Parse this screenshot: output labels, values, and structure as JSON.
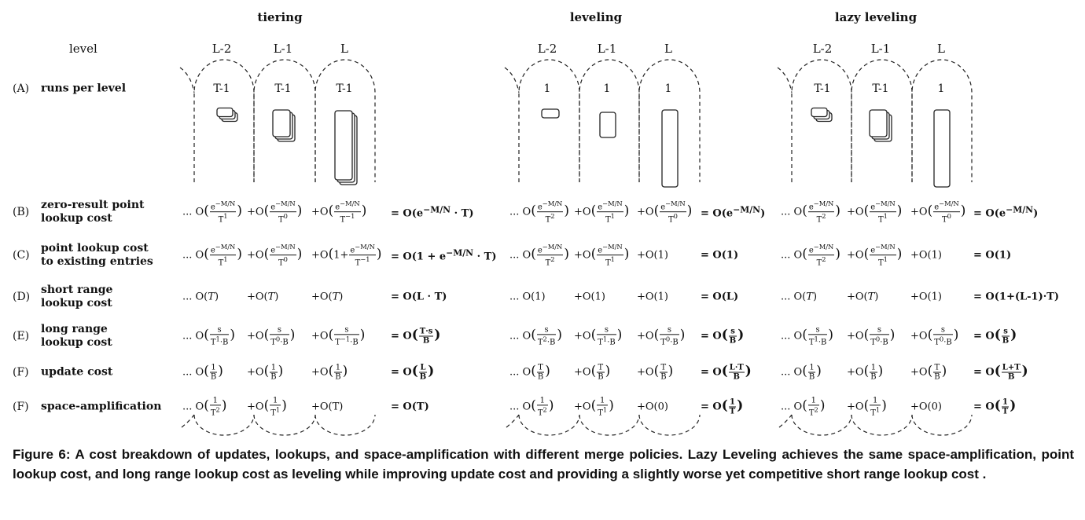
{
  "policies": [
    {
      "name": "tiering",
      "levels": [
        "L-2",
        "L-1",
        "L"
      ],
      "runs": [
        "T-1",
        "T-1",
        "T-1"
      ],
      "B": [
        [
          "... O",
          "e<sup>−M/N</sup>",
          "T<sup>1</sup>"
        ],
        [
          "+O",
          "e<sup>−M/N</sup>",
          "T<sup>0</sup>"
        ],
        [
          "+O",
          "e<sup>−M/N</sup>",
          "T<sup>−1</sup>"
        ]
      ],
      "B_res": "= O(e<sup>−M/N</sup> · T)",
      "C": [
        [
          "... O",
          "e<sup>−M/N</sup>",
          "T<sup>1</sup>"
        ],
        [
          "+O",
          "e<sup>−M/N</sup>",
          "T<sup>0</sup>"
        ],
        [
          "+O",
          "1+",
          "e<sup>−M/N</sup>",
          "T<sup>−1</sup>"
        ]
      ],
      "C_res": "= O(1 + e<sup>−M/N</sup> · T)",
      "D": [
        "... O(T)",
        "+O(T)",
        "+O(T)"
      ],
      "D_res": "= O(L · T)",
      "E": [
        [
          "... O",
          "s",
          "T<sup>1</sup>·B"
        ],
        [
          "+O",
          "s",
          "T<sup>0</sup>·B"
        ],
        [
          "+O",
          "s",
          "T<sup>−1</sup>·B"
        ]
      ],
      "E_res": [
        "= O",
        "T·s",
        "B"
      ],
      "F": [
        [
          "... O",
          "1",
          "B"
        ],
        [
          "+O",
          "1",
          "B"
        ],
        [
          "+O",
          "1",
          "B"
        ]
      ],
      "F_res": [
        "= O",
        "L",
        "B"
      ],
      "G": [
        [
          "... O",
          "1",
          "T<sup>2</sup>"
        ],
        [
          "+O",
          "1",
          "T<sup>1</sup>"
        ],
        [
          "+O(T)"
        ]
      ],
      "G_res": "= O(T)"
    },
    {
      "name": "leveling",
      "levels": [
        "L-2",
        "L-1",
        "L"
      ],
      "runs": [
        "1",
        "1",
        "1"
      ],
      "B": [
        [
          "... O",
          "e<sup>−M/N</sup>",
          "T<sup>2</sup>"
        ],
        [
          "+O",
          "e<sup>−M/N</sup>",
          "T<sup>1</sup>"
        ],
        [
          "+O",
          "e<sup>−M/N</sup>",
          "T<sup>0</sup>"
        ]
      ],
      "B_res": "= O(e<sup>−M/N</sup>)",
      "C": [
        [
          "... O",
          "e<sup>−M/N</sup>",
          "T<sup>2</sup>"
        ],
        [
          "+O",
          "e<sup>−M/N</sup>",
          "T<sup>1</sup>"
        ],
        [
          "+O(1)"
        ]
      ],
      "C_res": "= O(1)",
      "D": [
        "... O(1)",
        "+O(1)",
        "+O(1)"
      ],
      "D_res": "= O(L)",
      "E": [
        [
          "... O",
          "s",
          "T<sup>2</sup>·B"
        ],
        [
          "+O",
          "s",
          "T<sup>1</sup>·B"
        ],
        [
          "+O",
          "s",
          "T<sup>0</sup>·B"
        ]
      ],
      "E_res": [
        "= O",
        "s",
        "B"
      ],
      "F": [
        [
          "... O",
          "T",
          "B"
        ],
        [
          "+O",
          "T",
          "B"
        ],
        [
          "+O",
          "T",
          "B"
        ]
      ],
      "F_res": [
        "= O",
        "L·T",
        "B"
      ],
      "G": [
        [
          "... O",
          "1",
          "T<sup>2</sup>"
        ],
        [
          "+O",
          "1",
          "T<sup>1</sup>"
        ],
        [
          "+O(0)"
        ]
      ],
      "G_res": [
        "= O",
        "1",
        "T"
      ]
    },
    {
      "name": "lazy leveling",
      "levels": [
        "L-2",
        "L-1",
        "L"
      ],
      "runs": [
        "T-1",
        "T-1",
        "1"
      ],
      "B": [
        [
          "... O",
          "e<sup>−M/N</sup>",
          "T<sup>2</sup>"
        ],
        [
          "+O",
          "e<sup>−M/N</sup>",
          "T<sup>1</sup>"
        ],
        [
          "+O",
          "e<sup>−M/N</sup>",
          "T<sup>0</sup>"
        ]
      ],
      "B_res": "= O(e<sup>−M/N</sup>)",
      "C": [
        [
          "... O",
          "e<sup>−M/N</sup>",
          "T<sup>2</sup>"
        ],
        [
          "+O",
          "e<sup>−M/N</sup>",
          "T<sup>1</sup>"
        ],
        [
          "+O(1)"
        ]
      ],
      "C_res": "= O(1)",
      "D": [
        "... O(T)",
        "+O(T)",
        "+O(1)"
      ],
      "D_res": "= O(1+(L-1)·T)",
      "E": [
        [
          "... O",
          "s",
          "T<sup>1</sup>·B"
        ],
        [
          "+O",
          "s",
          "T<sup>0</sup>·B"
        ],
        [
          "+O",
          "s",
          "T<sup>0</sup>·B"
        ]
      ],
      "E_res": [
        "= O",
        "s",
        "B"
      ],
      "F": [
        [
          "... O",
          "1",
          "B"
        ],
        [
          "+O",
          "1",
          "B"
        ],
        [
          "+O",
          "T",
          "B"
        ]
      ],
      "F_res": [
        "= O",
        "L+T",
        "B"
      ],
      "G": [
        [
          "... O",
          "1",
          "T<sup>2</sup>"
        ],
        [
          "+O",
          "1",
          "T<sup>1</sup>"
        ],
        [
          "+O(0)"
        ]
      ],
      "G_res": [
        "= O",
        "1",
        "T"
      ]
    }
  ],
  "level_label": "level",
  "rows": [
    {
      "letter": "(A)",
      "label": "runs per level"
    },
    {
      "letter": "(B)",
      "label": "zero-result point lookup cost"
    },
    {
      "letter": "(C)",
      "label": "point lookup cost to existing entries"
    },
    {
      "letter": "(D)",
      "label": "short range lookup cost"
    },
    {
      "letter": "(E)",
      "label": "long range lookup cost"
    },
    {
      "letter": "(F)",
      "label": "update cost"
    },
    {
      "letter": "(F)",
      "label": "space-amplification"
    }
  ],
  "caption": "Figure 6: A cost breakdown of updates, lookups, and space-amplification with different merge policies. Lazy Leveling achieves the same space-amplification, point lookup cost, and long range lookup cost as leveling while improving update cost and providing a slightly worse yet competitive short range lookup cost ."
}
